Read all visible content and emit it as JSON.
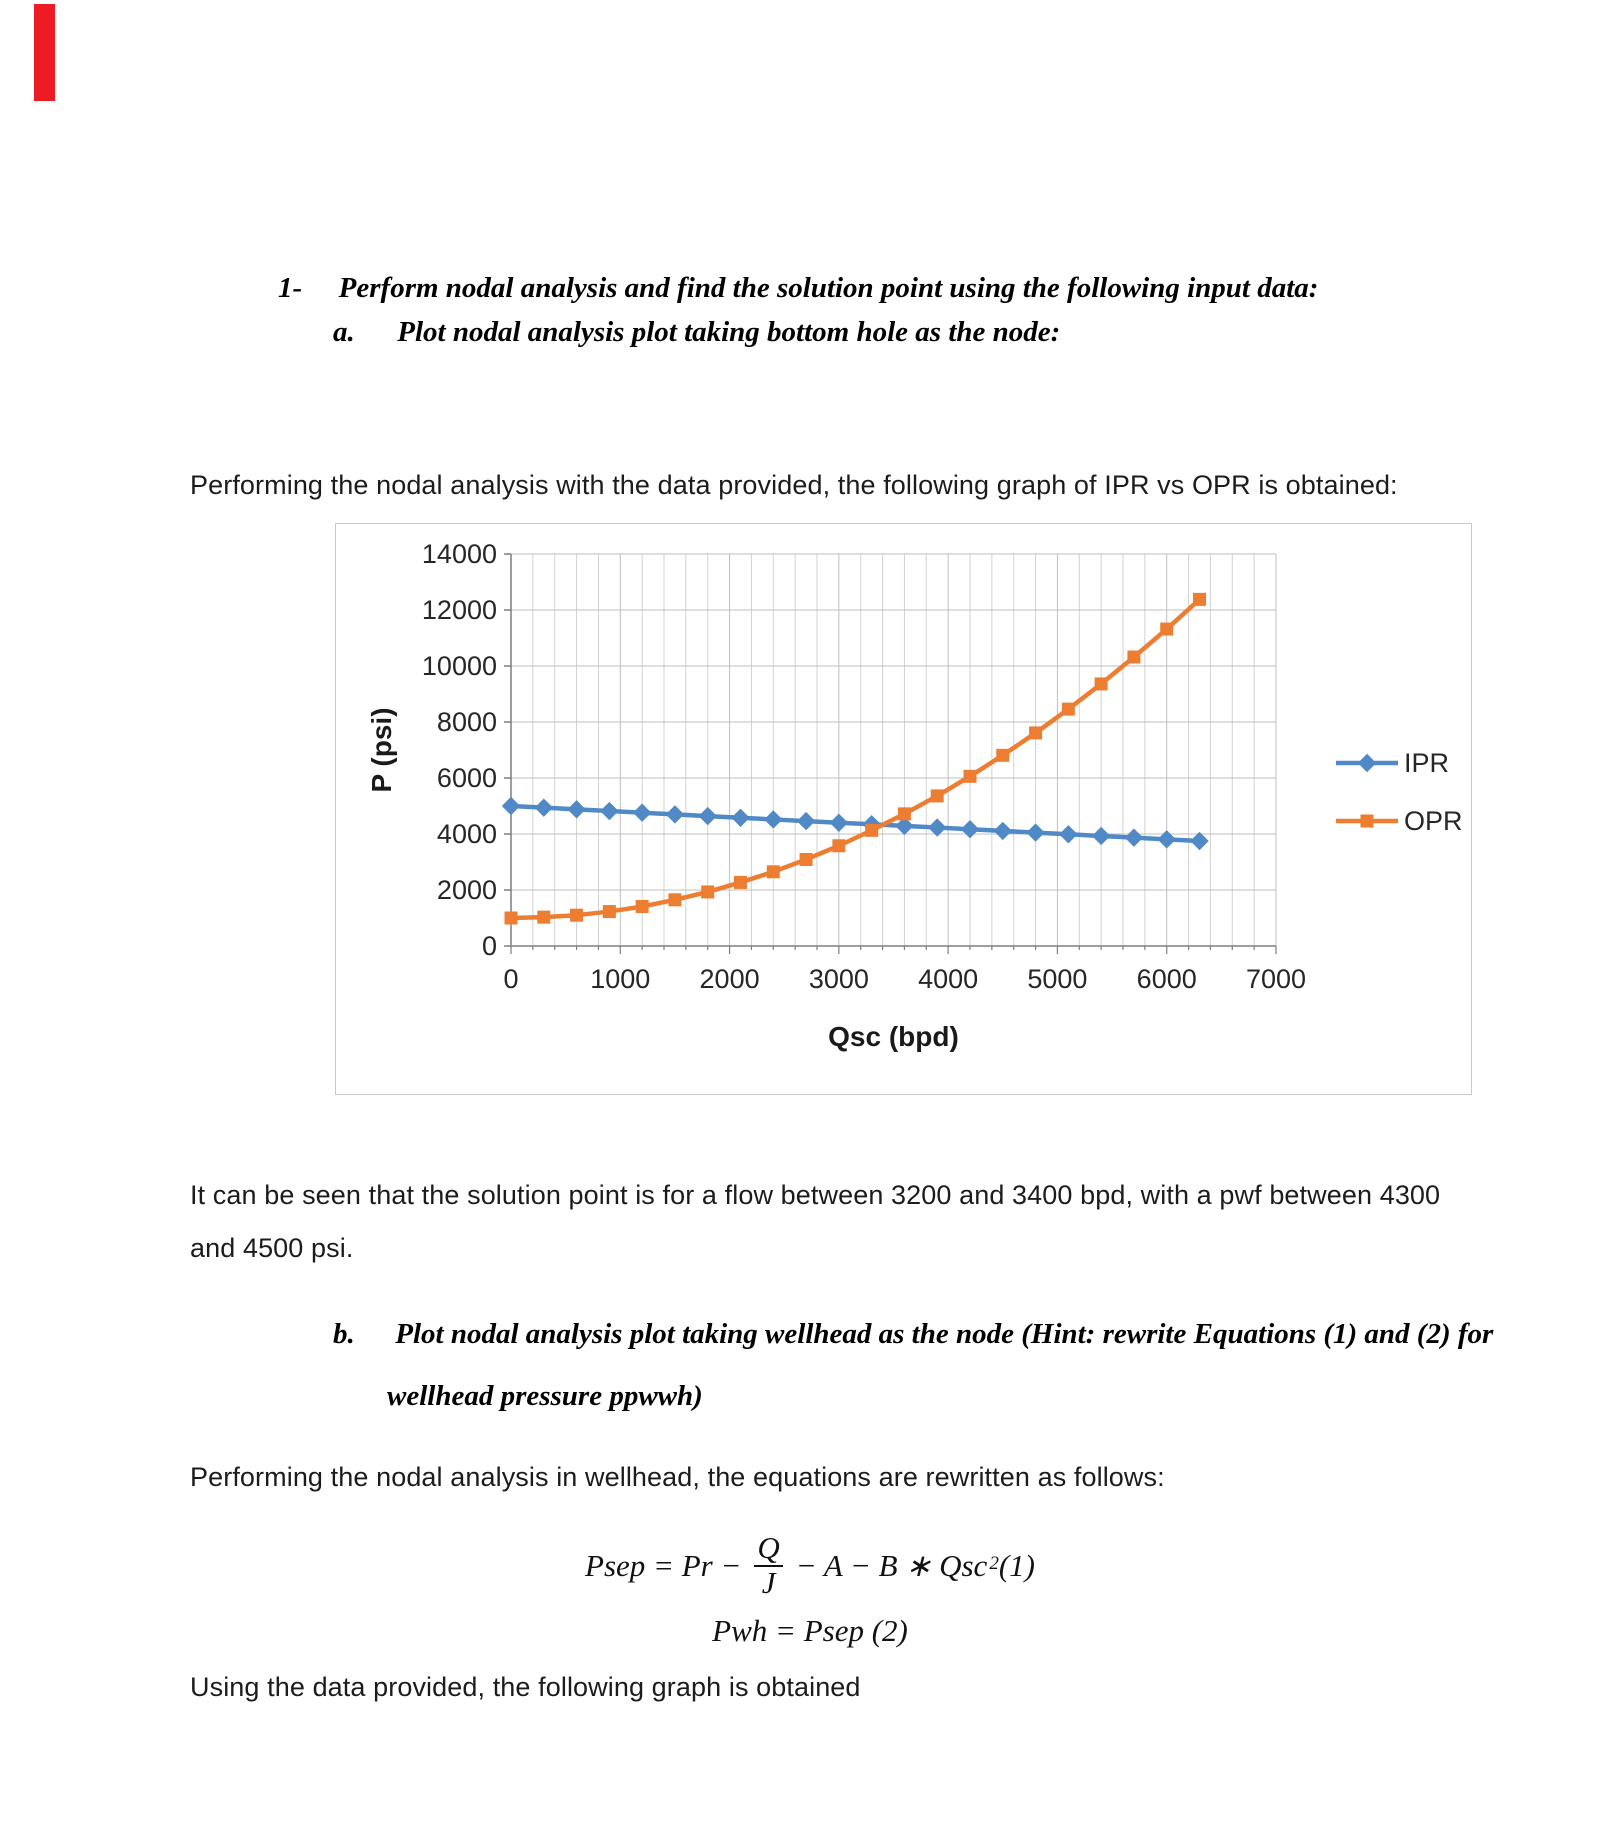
{
  "page": {
    "heading_number": "1-",
    "heading_text": "Perform nodal analysis and find the solution point using the following input data:",
    "sub_a_label": "a.",
    "sub_a_text": "Plot nodal analysis plot taking bottom hole as the node:",
    "para_intro": "Performing the nodal analysis with the data provided, the following graph of IPR vs OPR is obtained:",
    "solution_lines": [
      "It can be seen that the solution point is for a flow between 3200 and 3400 bpd, with a pwf between 4300",
      "and 4500 psi."
    ],
    "sub_b_label": "b.",
    "sub_b_lines": [
      "Plot nodal analysis plot taking wellhead as the node (Hint: rewrite Equations (1) and (2) for",
      "wellhead pressure ppwwh)"
    ],
    "para_rewrite": "Performing the nodal analysis in wellhead, the equations are rewritten as follows:",
    "para_closing": "Using the data provided, the following graph is obtained"
  },
  "equations": {
    "eq1_pre": "Psep = Pr −",
    "eq1_num": "Q",
    "eq1_den": "J",
    "eq1_post": "− A − B ∗ Qsc",
    "eq1_sup": "2",
    "eq1_tag": "(1)",
    "eq2": "Pwh = Psep (2)"
  },
  "decor": {
    "red_marker_color": "#ed1c24"
  },
  "chart_data": {
    "type": "line",
    "title": "",
    "xlabel": "Qsc (bpd)",
    "ylabel": "P (psi)",
    "xlim": [
      0,
      7000
    ],
    "ylim": [
      0,
      14000
    ],
    "x_ticks": [
      0,
      1000,
      2000,
      3000,
      4000,
      5000,
      6000,
      7000
    ],
    "y_ticks": [
      0,
      2000,
      4000,
      6000,
      8000,
      10000,
      12000,
      14000
    ],
    "x_minor_step": 200,
    "grid": true,
    "legend_position": "right",
    "colors": {
      "grid_minor": "#d2d2d2",
      "grid_major": "#bfbfbf",
      "axis": "#7f7f7f",
      "text": "#262626"
    },
    "x": [
      0,
      300,
      600,
      900,
      1200,
      1500,
      1800,
      2100,
      2400,
      2700,
      3000,
      3300,
      3600,
      3900,
      4200,
      4500,
      4800,
      5100,
      5400,
      5700,
      6000,
      6300
    ],
    "series": [
      {
        "name": "IPR",
        "color": "#5089c6",
        "marker": "diamond",
        "values": [
          5000,
          4940,
          4880,
          4820,
          4760,
          4700,
          4640,
          4580,
          4520,
          4460,
          4400,
          4350,
          4290,
          4230,
          4170,
          4110,
          4050,
          3990,
          3930,
          3870,
          3810,
          3750
        ]
      },
      {
        "name": "OPR",
        "color": "#ed7d31",
        "marker": "square",
        "values": [
          1000,
          1030,
          1100,
          1230,
          1410,
          1650,
          1930,
          2270,
          2650,
          3090,
          3580,
          4130,
          4720,
          5360,
          6060,
          6810,
          7610,
          8460,
          9360,
          10320,
          11320,
          12380
        ]
      }
    ],
    "solution_point_note": "IPR and OPR intersect between 3200 and 3400 bpd at a pwf between 4300 and 4500 psi"
  }
}
